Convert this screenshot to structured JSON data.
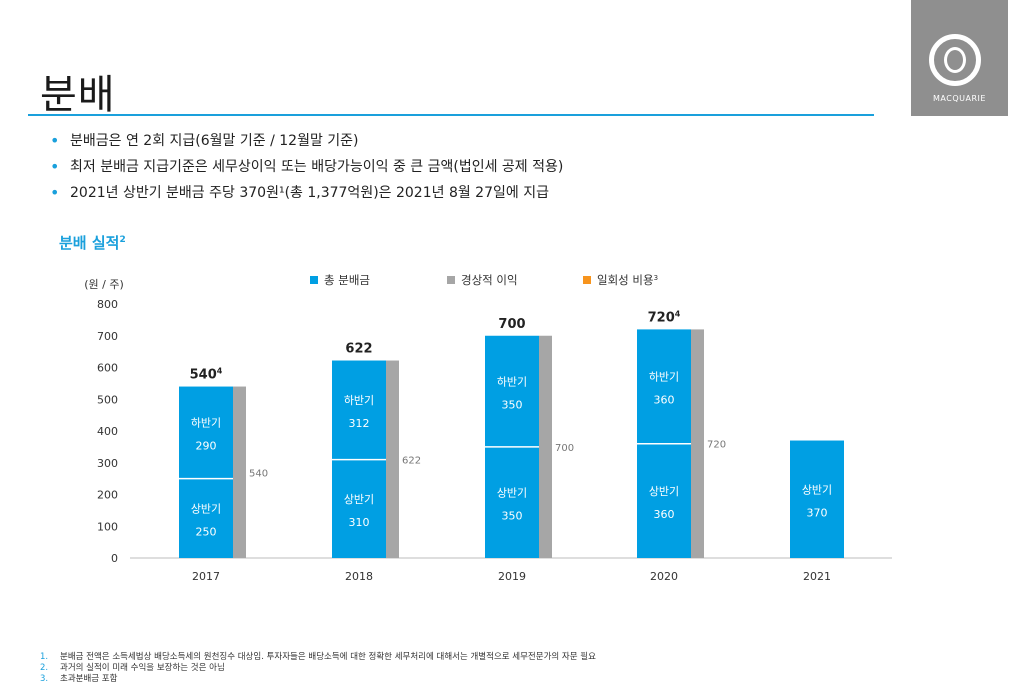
{
  "page": {
    "title": "분배",
    "bullets": [
      "분배금은 연 2회 지급(6월말 기준 / 12월말 기준)",
      "최저 분배금 지급기준은 세무상이익 또는 배당가능이익 중 큰 금액(법인세 공제 적용)",
      "2021년 상반기 분배금 주당 370원¹(총 1,377억원)은 2021년 8월 27일에 지급"
    ],
    "section_title": "분배 실적",
    "section_title_sup": "2",
    "footnotes": [
      {
        "num": "1.",
        "text": "분배금 전액은 소득세법상 배당소득세의 원천징수 대상임. 투자자들은 배당소득에 대한 정확한 세무처리에 대해서는 개별적으로 세무전문가의 자문 필요"
      },
      {
        "num": "2.",
        "text": "과거의 실적이 미래 수익을 보장하는 것은 아님"
      },
      {
        "num": "3.",
        "text": "초과분배금 포함"
      }
    ]
  },
  "logo": {
    "text": "MACQUARIE",
    "icon": "macquarie-ring-icon"
  },
  "colors": {
    "accent": "#1aa0dc",
    "bar_blue": "#009fe3",
    "bar_gray": "#a6a6a6",
    "one_time_orange": "#f7941d"
  },
  "chart_data": {
    "type": "bar",
    "ylabel": "(원 / 주)",
    "ylim": [
      0,
      800
    ],
    "yticks": [
      0,
      100,
      200,
      300,
      400,
      500,
      600,
      700,
      800
    ],
    "categories": [
      "2017",
      "2018",
      "2019",
      "2020",
      "2021"
    ],
    "legend": [
      {
        "name": "총 분배금",
        "color": "#009fe3"
      },
      {
        "name": "경상적 이익",
        "color": "#a6a6a6"
      },
      {
        "name": "일회성 비용",
        "sup": "3",
        "color": "#f7941d"
      }
    ],
    "segment_labels": {
      "h1": "상반기",
      "h2": "하반기"
    },
    "series": [
      {
        "name": "상반기",
        "values": [
          250,
          310,
          350,
          360,
          370
        ]
      },
      {
        "name": "하반기",
        "values": [
          290,
          312,
          350,
          360,
          null
        ]
      },
      {
        "name": "경상적 이익",
        "values": [
          540,
          622,
          700,
          720,
          null
        ]
      }
    ],
    "totals": [
      {
        "label": "540",
        "sup": "4"
      },
      {
        "label": "622",
        "sup": ""
      },
      {
        "label": "700",
        "sup": ""
      },
      {
        "label": "720",
        "sup": "4"
      },
      null
    ]
  }
}
